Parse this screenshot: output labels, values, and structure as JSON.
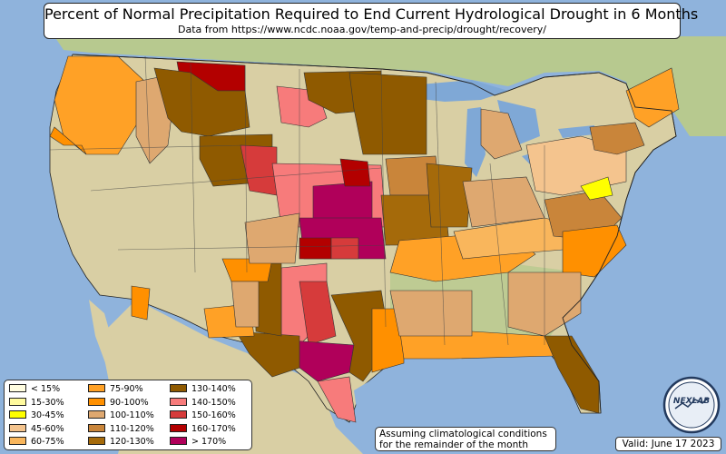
{
  "title": "Percent of Normal Precipitation Required to End Current Hydrological Drought in 6 Months",
  "subtitle": "Data from https://www.ncdc.noaa.gov/temp-and-precip/drought/recovery/",
  "legend": [
    {
      "label": "< 15%",
      "color": "#fffde0"
    },
    {
      "label": "15-30%",
      "color": "#fffa9e"
    },
    {
      "label": "30-45%",
      "color": "#ffff00"
    },
    {
      "label": "45-60%",
      "color": "#f4c48e"
    },
    {
      "label": "60-75%",
      "color": "#f9b65c"
    },
    {
      "label": "75-90%",
      "color": "#ffa126"
    },
    {
      "label": "90-100%",
      "color": "#ff9000"
    },
    {
      "label": "100-110%",
      "color": "#dea870"
    },
    {
      "label": "110-120%",
      "color": "#c9853a"
    },
    {
      "label": "120-130%",
      "color": "#a56a0a"
    },
    {
      "label": "130-140%",
      "color": "#8f5a00"
    },
    {
      "label": "140-150%",
      "color": "#f77b7b"
    },
    {
      "label": "150-160%",
      "color": "#d63b3b"
    },
    {
      "label": "160-170%",
      "color": "#b30000"
    },
    {
      "label": "> 170%",
      "color": "#b0005a"
    }
  ],
  "note": {
    "line1": "Assuming climatological conditions",
    "line2": "for the remainder of the month"
  },
  "valid": "Valid: June 17 2023",
  "logo_text": "NEXLAB",
  "colors": {
    "ocean": "#8fb3dc",
    "land": "#d9cfa4",
    "land_green": "#b7c98f",
    "lake": "#7fa8d6",
    "border": "#222222"
  }
}
